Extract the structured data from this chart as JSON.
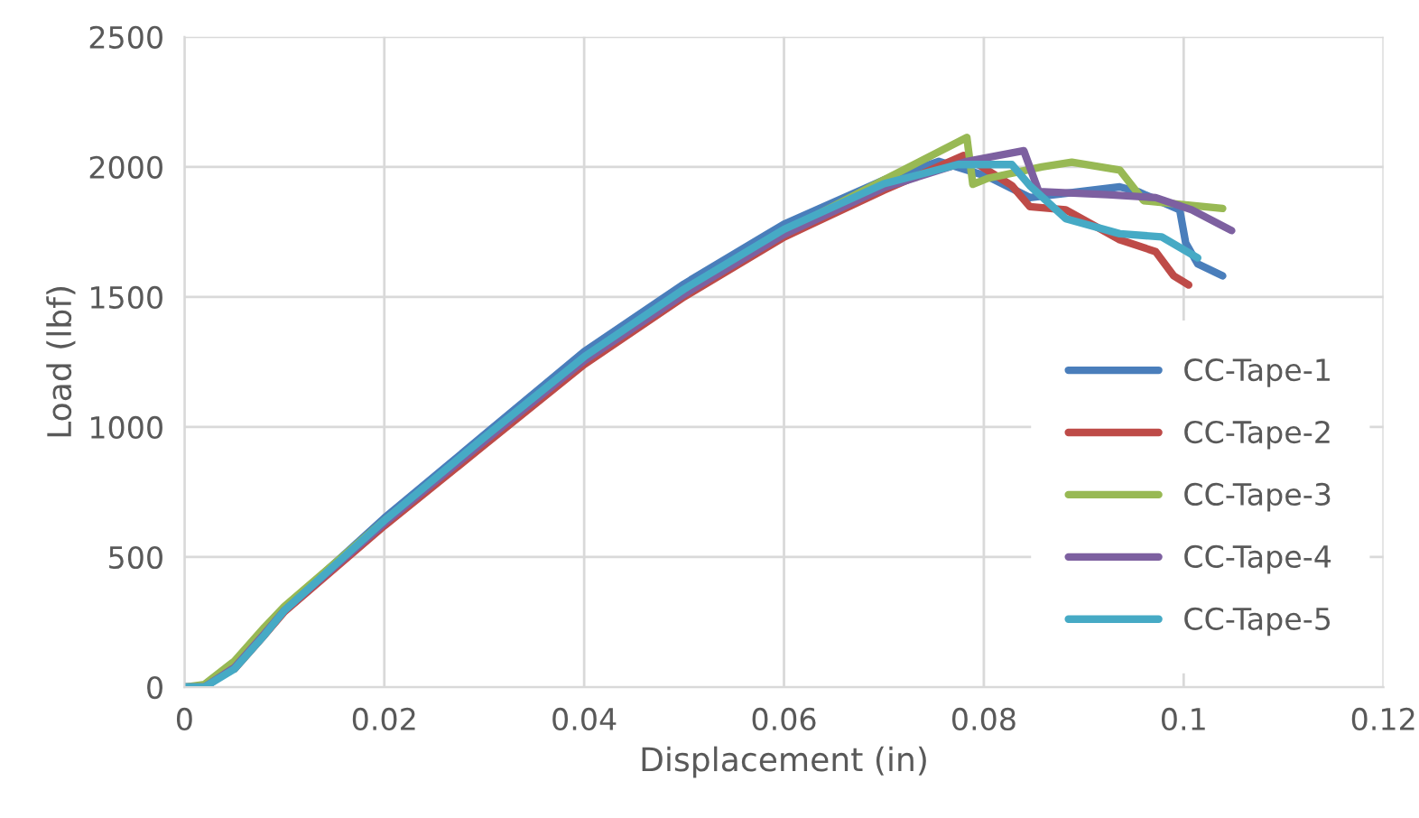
{
  "chart_data": {
    "type": "line",
    "xlabel": "Displacement (in)",
    "ylabel": "Load (lbf)",
    "xlim": [
      0,
      0.12
    ],
    "xticks": [
      0,
      0.02,
      0.04,
      0.06,
      0.08,
      0.1,
      0.12
    ],
    "ylim": [
      0,
      2500
    ],
    "yticks": [
      0,
      500,
      1000,
      1500,
      2000,
      2500
    ],
    "grid": true,
    "legend": "bottom right",
    "marker": "none",
    "line_style": "solid",
    "series": [
      {
        "name": "CC-Tape-1",
        "color": "#4a7ebb",
        "x": [
          0,
          0.002,
          0.005,
          0.008,
          0.01,
          0.02,
          0.03,
          0.04,
          0.05,
          0.06,
          0.07,
          0.0755,
          0.0804,
          0.0846,
          0.0936,
          0.0954,
          0.0996,
          0.1002,
          0.1014,
          0.1039
        ],
        "values": [
          0,
          0,
          80,
          210,
          300,
          650,
          970,
          1290,
          1550,
          1780,
          1950,
          2021,
          1963,
          1882,
          1923,
          1905,
          1835,
          1708,
          1627,
          1581
        ]
      },
      {
        "name": "CC-Tape-2",
        "color": "#be4b48",
        "x": [
          0.005,
          0.008,
          0.01,
          0.02,
          0.03,
          0.04,
          0.05,
          0.06,
          0.07,
          0.078,
          0.0828,
          0.0846,
          0.0882,
          0.0936,
          0.0972,
          0.099,
          0.1005
        ],
        "values": [
          70,
          200,
          290,
          620,
          930,
          1240,
          1500,
          1730,
          1910,
          2044,
          1928,
          1847,
          1835,
          1720,
          1674,
          1581,
          1546
        ]
      },
      {
        "name": "CC-Tape-3",
        "color": "#98b954",
        "x": [
          0,
          0.002,
          0.005,
          0.008,
          0.01,
          0.02,
          0.03,
          0.04,
          0.05,
          0.06,
          0.07,
          0.0783,
          0.0789,
          0.0804,
          0.0858,
          0.0888,
          0.0936,
          0.096,
          0.1039
        ],
        "values": [
          0,
          10,
          100,
          230,
          310,
          640,
          950,
          1260,
          1520,
          1750,
          1950,
          2113,
          1933,
          1956,
          2000,
          2018,
          1988,
          1870,
          1840
        ]
      },
      {
        "name": "CC-Tape-4",
        "color": "#7d60a0",
        "x": [
          0,
          0.002,
          0.005,
          0.008,
          0.01,
          0.02,
          0.03,
          0.04,
          0.05,
          0.06,
          0.07,
          0.0783,
          0.084,
          0.0855,
          0.0924,
          0.0972,
          0.1008,
          0.1048
        ],
        "values": [
          0,
          0,
          75,
          205,
          295,
          630,
          945,
          1255,
          1510,
          1740,
          1920,
          2021,
          2062,
          1905,
          1893,
          1882,
          1835,
          1755
        ]
      },
      {
        "name": "CC-Tape-5",
        "color": "#46aac5",
        "x": [
          0,
          0.002,
          0.005,
          0.008,
          0.01,
          0.02,
          0.03,
          0.04,
          0.05,
          0.06,
          0.07,
          0.0774,
          0.0828,
          0.0846,
          0.0882,
          0.0936,
          0.0978,
          0.1014
        ],
        "values": [
          0,
          0,
          70,
          200,
          295,
          640,
          960,
          1270,
          1530,
          1760,
          1935,
          2009,
          2009,
          1928,
          1801,
          1743,
          1731,
          1650
        ]
      }
    ]
  }
}
